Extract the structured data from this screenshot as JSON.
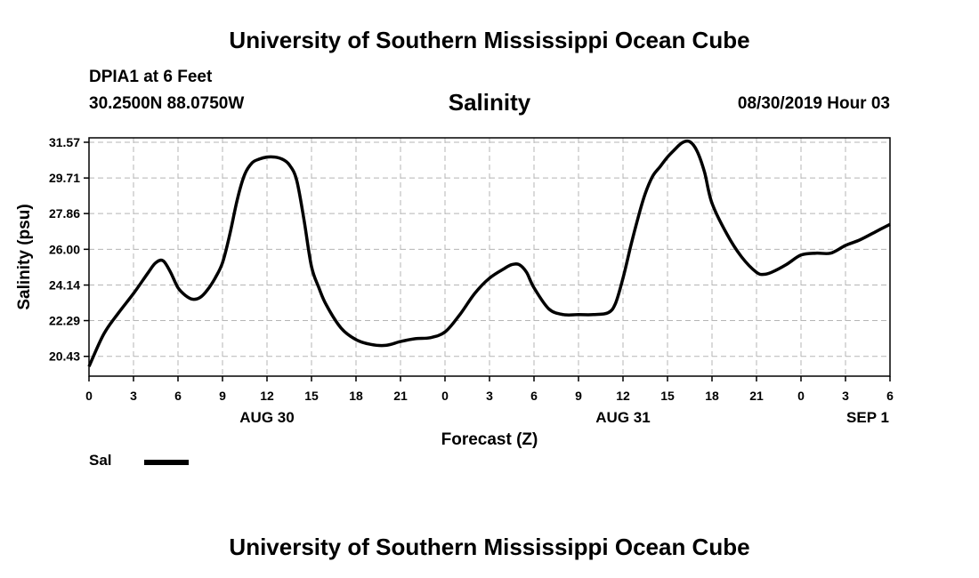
{
  "header": {
    "top_title": "University of Southern Mississippi Ocean Cube",
    "station": "DPIA1 at 6 Feet",
    "coords": "30.2500N 88.0750W",
    "chart_title": "Salinity",
    "datetime": "08/30/2019 Hour 03"
  },
  "footer": {
    "bottom_title": "University of Southern Mississippi Ocean Cube"
  },
  "legend": {
    "label": "Sal"
  },
  "chart_data": {
    "type": "line",
    "title": "Salinity",
    "xlabel": "Forecast (Z)",
    "ylabel": "Salinity (psu)",
    "xlim": [
      0,
      54
    ],
    "ylim": [
      19.4,
      31.8
    ],
    "x_ticks": [
      0,
      3,
      6,
      9,
      12,
      15,
      18,
      21,
      24,
      27,
      30,
      33,
      36,
      39,
      42,
      45,
      48,
      51,
      54
    ],
    "x_tick_labels": [
      "0",
      "3",
      "6",
      "9",
      "12",
      "15",
      "18",
      "21",
      "0",
      "3",
      "6",
      "9",
      "12",
      "15",
      "18",
      "21",
      "0",
      "3",
      "6"
    ],
    "y_ticks": [
      20.43,
      22.29,
      24.14,
      26.0,
      27.86,
      29.71,
      31.57
    ],
    "y_tick_labels": [
      "20.43",
      "22.29",
      "24.14",
      "26.00",
      "27.86",
      "29.71",
      "31.57"
    ],
    "date_labels": [
      {
        "x": 12,
        "label": "AUG 30"
      },
      {
        "x": 36,
        "label": "AUG 31"
      },
      {
        "x": 52.5,
        "label": "SEP 1"
      }
    ],
    "grid": true,
    "series": [
      {
        "name": "Sal",
        "color": "#000000",
        "x": [
          0,
          1,
          2,
          3,
          4,
          4.5,
          5,
          5.5,
          6,
          6.5,
          7,
          7.5,
          8,
          8.5,
          9,
          9.5,
          10,
          10.5,
          11,
          11.5,
          12,
          12.5,
          13,
          13.5,
          14,
          14.5,
          15,
          15.5,
          16,
          17,
          18,
          19,
          20,
          21,
          22,
          23,
          24,
          25,
          26,
          27,
          28,
          28.5,
          29,
          29.5,
          30,
          31,
          32,
          33,
          34,
          35,
          35.5,
          36,
          36.5,
          37,
          37.5,
          38,
          38.5,
          39,
          39.5,
          40,
          40.5,
          41,
          41.5,
          42,
          43,
          44,
          45,
          45.5,
          46,
          47,
          48,
          49,
          50,
          51,
          52,
          53,
          54
        ],
        "y": [
          19.9,
          21.6,
          22.7,
          23.7,
          24.8,
          25.3,
          25.4,
          24.8,
          24.0,
          23.6,
          23.4,
          23.5,
          23.9,
          24.5,
          25.3,
          26.8,
          28.6,
          29.9,
          30.5,
          30.7,
          30.8,
          30.8,
          30.7,
          30.4,
          29.6,
          27.5,
          25.1,
          24.0,
          23.1,
          21.9,
          21.3,
          21.05,
          21.0,
          21.2,
          21.35,
          21.4,
          21.7,
          22.6,
          23.7,
          24.5,
          25.0,
          25.2,
          25.2,
          24.8,
          24.0,
          22.9,
          22.6,
          22.6,
          22.6,
          22.7,
          23.2,
          24.5,
          26.1,
          27.6,
          28.9,
          29.8,
          30.3,
          30.8,
          31.2,
          31.55,
          31.6,
          31.1,
          30.0,
          28.4,
          26.8,
          25.6,
          24.8,
          24.7,
          24.8,
          25.2,
          25.7,
          25.8,
          25.8,
          26.2,
          26.5,
          26.9,
          27.3
        ]
      }
    ]
  }
}
